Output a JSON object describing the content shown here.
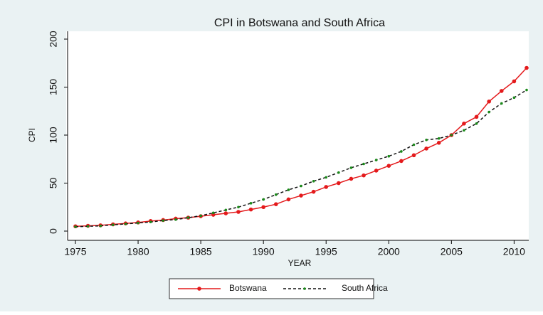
{
  "chart_data": {
    "type": "line",
    "title": "CPI in Botswana and South Africa",
    "x_label": "YEAR",
    "y_label": "CPI",
    "x": [
      1975,
      1976,
      1977,
      1978,
      1979,
      1980,
      1981,
      1982,
      1983,
      1984,
      1985,
      1986,
      1987,
      1988,
      1989,
      1990,
      1991,
      1992,
      1993,
      1994,
      1995,
      1996,
      1997,
      1998,
      1999,
      2000,
      2001,
      2002,
      2003,
      2004,
      2005,
      2006,
      2007,
      2008,
      2009,
      2010,
      2011
    ],
    "series": [
      {
        "name": "Botswana",
        "color": "#e41a1c",
        "marker_color": "#e41a1c",
        "line_style": "solid",
        "values": [
          5,
          5.5,
          6,
          7,
          8,
          9,
          10.5,
          11.5,
          13,
          14,
          15.5,
          17,
          18.5,
          20,
          22.5,
          25,
          28,
          33,
          37,
          41,
          46,
          50,
          54.5,
          58,
          63,
          68,
          73,
          79,
          86,
          92,
          100,
          112,
          119,
          135,
          146,
          156,
          170
        ]
      },
      {
        "name": "South Africa",
        "color": "#111111",
        "marker_color": "#1a8a1a",
        "line_style": "dashed",
        "values": [
          4.5,
          5,
          5.5,
          6.5,
          7.5,
          8.5,
          9.5,
          11,
          12,
          14,
          16,
          19,
          22,
          25,
          29,
          33,
          38,
          43,
          47,
          52,
          56,
          61,
          66,
          70,
          74,
          78,
          83,
          90,
          95,
          96.5,
          100,
          105,
          112,
          124,
          133,
          139,
          147
        ]
      }
    ],
    "xlim": [
      1975,
      2011
    ],
    "xticks": [
      1975,
      1980,
      1985,
      1990,
      1995,
      2000,
      2005,
      2010
    ],
    "ylim": [
      0,
      200
    ],
    "yticks": [
      0,
      50,
      100,
      150,
      200
    ],
    "grid": false,
    "legend": "bottom"
  }
}
